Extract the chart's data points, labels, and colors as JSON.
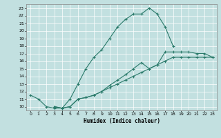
{
  "xlabel": "Humidex (Indice chaleur)",
  "xlim": [
    -0.5,
    23.5
  ],
  "ylim": [
    9.5,
    23.5
  ],
  "yticks": [
    10,
    11,
    12,
    13,
    14,
    15,
    16,
    17,
    18,
    19,
    20,
    21,
    22,
    23
  ],
  "xticks": [
    0,
    1,
    2,
    3,
    4,
    5,
    6,
    7,
    8,
    9,
    10,
    11,
    12,
    13,
    14,
    15,
    16,
    17,
    18,
    19,
    20,
    21,
    22,
    23
  ],
  "bg_color": "#c2e0e0",
  "line_color": "#2a7a6a",
  "line1_x": [
    0,
    1,
    2,
    3,
    4,
    5,
    6,
    7,
    8,
    9,
    10,
    11,
    12,
    13,
    14,
    15,
    16,
    17,
    18
  ],
  "line1_y": [
    11.5,
    11.0,
    10.0,
    9.8,
    9.8,
    11.0,
    13.0,
    15.0,
    16.5,
    17.5,
    19.0,
    20.5,
    21.5,
    22.2,
    22.2,
    23.0,
    22.2,
    20.5,
    18.0
  ],
  "line2_x": [
    3,
    4,
    5,
    6,
    7,
    8,
    9,
    10,
    11,
    12,
    13,
    14,
    15,
    16,
    17,
    18,
    19,
    20,
    21,
    22,
    23
  ],
  "line2_y": [
    10.0,
    9.8,
    10.0,
    11.0,
    11.2,
    11.5,
    12.0,
    12.5,
    13.0,
    13.5,
    14.0,
    14.5,
    15.0,
    15.5,
    17.2,
    17.2,
    17.2,
    17.2,
    17.0,
    17.0,
    16.5
  ],
  "line3_x": [
    3,
    4,
    5,
    6,
    7,
    8,
    9,
    10,
    11,
    12,
    13,
    14,
    15,
    16,
    17,
    18,
    19,
    20,
    21,
    22,
    23
  ],
  "line3_y": [
    10.0,
    9.8,
    10.0,
    11.0,
    11.2,
    11.5,
    12.0,
    12.8,
    13.5,
    14.2,
    15.0,
    15.8,
    15.0,
    15.5,
    16.0,
    16.5,
    16.5,
    16.5,
    16.5,
    16.5,
    16.5
  ]
}
